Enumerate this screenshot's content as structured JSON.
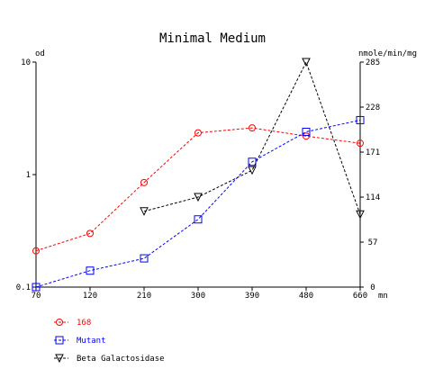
{
  "chart_data": {
    "type": "line",
    "title": "Minimal Medium",
    "y_left_unit": "od",
    "y_right_unit": "nmole/min/mg",
    "x_unit": "mn",
    "x_ticks": [
      70,
      120,
      210,
      300,
      390,
      480,
      660
    ],
    "x_range": [
      70,
      660
    ],
    "y_left_scale": "log",
    "y_left_range": [
      0.1,
      10
    ],
    "y_left_ticks": [
      {
        "value": 0.1,
        "label": "0.1"
      },
      {
        "value": 1,
        "label": "1"
      },
      {
        "value": 10,
        "label": "10"
      }
    ],
    "y_right_range": [
      0,
      285
    ],
    "y_right_ticks": [
      0,
      57,
      114,
      171,
      228,
      285
    ],
    "grid": false,
    "legend_placement": "bottom-left",
    "series": [
      {
        "name": "168",
        "axis": "left",
        "color": "#ff0000",
        "marker": "circle",
        "line_style": "dashed",
        "points": [
          [
            70,
            0.21
          ],
          [
            120,
            0.3
          ],
          [
            210,
            0.85
          ],
          [
            300,
            2.35
          ],
          [
            390,
            2.6
          ],
          [
            480,
            2.2
          ],
          [
            660,
            1.9
          ]
        ]
      },
      {
        "name": "Mutant",
        "axis": "left",
        "color": "#0000ff",
        "marker": "square",
        "line_style": "dashed",
        "points": [
          [
            70,
            0.1
          ],
          [
            120,
            0.14
          ],
          [
            210,
            0.18
          ],
          [
            300,
            0.4
          ],
          [
            390,
            1.3
          ],
          [
            480,
            2.4
          ],
          [
            660,
            3.05
          ]
        ]
      },
      {
        "name": "Beta Galactosidase",
        "axis": "right",
        "color": "#000000",
        "marker": "triangle-down",
        "line_style": "dashed",
        "points": [
          [
            210,
            96
          ],
          [
            300,
            114
          ],
          [
            390,
            148
          ],
          [
            480,
            285
          ],
          [
            660,
            92
          ]
        ]
      }
    ]
  }
}
